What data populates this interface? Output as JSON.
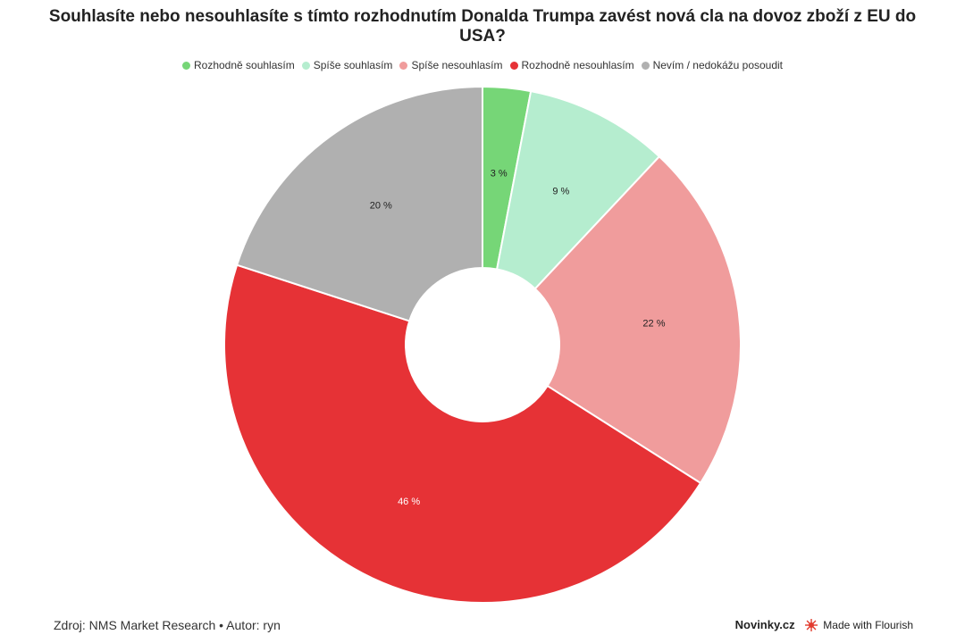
{
  "chart_data": {
    "type": "pie",
    "title": "Souhlasíte nebo nesouhlasíte s tímto rozhodnutím Donalda Trumpa zavést nová cla na dovoz zboží z EU do USA?",
    "legend_position": "top",
    "donut": true,
    "slices": [
      {
        "name": "Rozhodně souhlasím",
        "value": 3,
        "label": "3 %",
        "color": "#76d677",
        "label_color": "#222222"
      },
      {
        "name": "Spíše souhlasím",
        "value": 9,
        "label": "9 %",
        "color": "#b5edcf",
        "label_color": "#222222"
      },
      {
        "name": "Spíše nesouhlasím",
        "value": 22,
        "label": "22 %",
        "color": "#f09c9c",
        "label_color": "#222222"
      },
      {
        "name": "Rozhodně nesouhlasím",
        "value": 46,
        "label": "46 %",
        "color": "#e63236",
        "label_color": "#ffffff"
      },
      {
        "name": "Nevím / nedokážu posoudit",
        "value": 20,
        "label": "20 %",
        "color": "#b0b0b0",
        "label_color": "#222222"
      }
    ]
  },
  "footer": {
    "source": "Zdroj: NMS Market Research • Autor: ryn",
    "brand": "Novinky.cz",
    "made_with": "Made with Flourish"
  },
  "icons": {
    "flourish": "flourish-logo-icon"
  }
}
